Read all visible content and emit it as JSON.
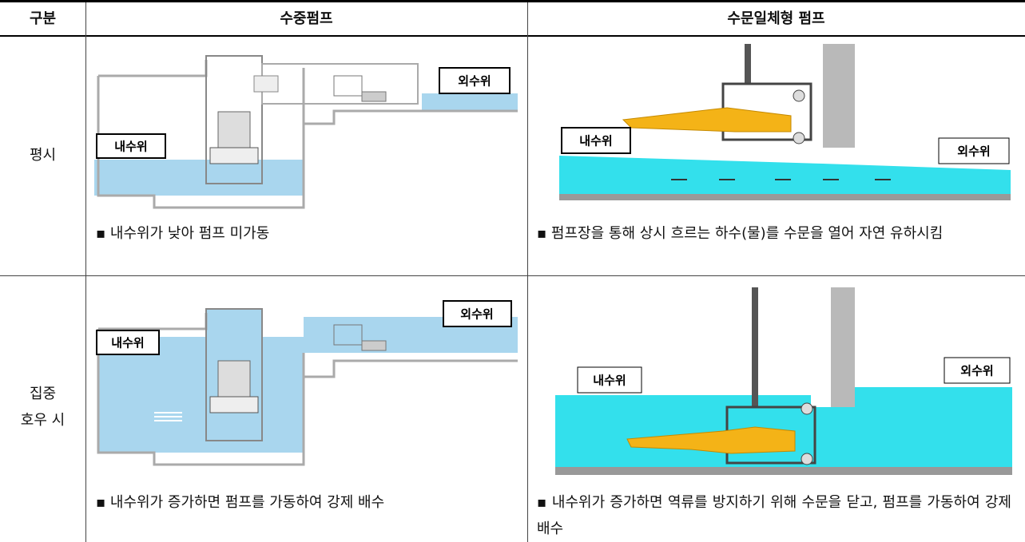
{
  "table": {
    "headers": [
      "구분",
      "수중펌프",
      "수문일체형 펌프"
    ],
    "rows": [
      {
        "label": [
          "평시"
        ],
        "submersible": {
          "outer_label": "외수위",
          "inner_label": "내수위",
          "caption": "▪ 내수위가 낮아 펌프 미가동"
        },
        "gate_pump": {
          "outer_label": "외수위",
          "inner_label": "내수위",
          "caption": "▪ 펌프장을 통해 상시 흐르는 하수(물)를 수문을 열어 자연 유하시킴"
        }
      },
      {
        "label": [
          "집중",
          "호우 시"
        ],
        "submersible": {
          "outer_label": "외수위",
          "inner_label": "내수위",
          "caption": "▪ 내수위가 증가하면 펌프를 가동하여 강제 배수"
        },
        "gate_pump": {
          "outer_label": "외수위",
          "inner_label": "내수위",
          "caption": "▪ 내수위가 증가하면 역류를 방지하기 위해 수문을 닫고, 펌프를 가동하여 강제 배수"
        }
      }
    ]
  }
}
